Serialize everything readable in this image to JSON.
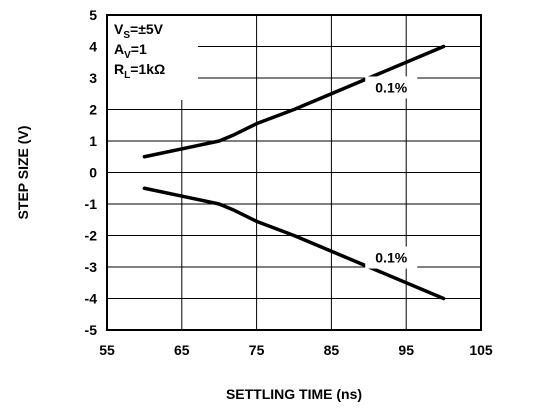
{
  "chart_data": {
    "type": "line",
    "xlabel": "SETTLING TIME (ns)",
    "ylabel": "STEP SIZE (V)",
    "xlim": [
      55,
      105
    ],
    "ylim": [
      -5,
      5
    ],
    "x_ticks": [
      "55",
      "65",
      "75",
      "85",
      "95",
      "105"
    ],
    "y_ticks": [
      "5",
      "4",
      "3",
      "2",
      "1",
      "0",
      "-1",
      "-2",
      "-3",
      "-4",
      "-5"
    ],
    "grid": true,
    "conditions": [
      {
        "main": "V",
        "sub": "S",
        "rest": "=±5V"
      },
      {
        "main": "A",
        "sub": "V",
        "rest": "=1"
      },
      {
        "main": "R",
        "sub": "L",
        "rest": "=1kΩ"
      }
    ],
    "series": [
      {
        "label": "0.1%",
        "points": [
          [
            60,
            0.5
          ],
          [
            66,
            0.8
          ],
          [
            70,
            1.0
          ],
          [
            72,
            1.2
          ],
          [
            75,
            1.55
          ],
          [
            80,
            2.0
          ],
          [
            90,
            3.0
          ],
          [
            100,
            4.0
          ]
        ]
      },
      {
        "label": "0.1%",
        "points": [
          [
            60,
            -0.5
          ],
          [
            66,
            -0.8
          ],
          [
            70,
            -1.0
          ],
          [
            72,
            -1.2
          ],
          [
            75,
            -1.55
          ],
          [
            80,
            -2.0
          ],
          [
            90,
            -3.0
          ],
          [
            100,
            -4.0
          ]
        ]
      }
    ],
    "color": "#000000"
  }
}
